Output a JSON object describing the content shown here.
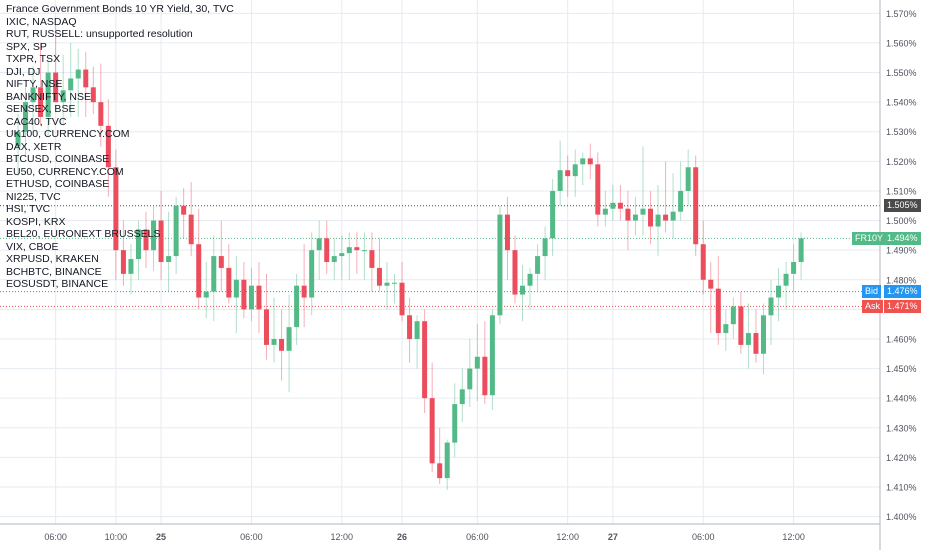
{
  "legend": [
    "France Government Bonds 10 YR Yield, 30, TVC",
    "IXIC, NASDAQ",
    "RUT, RUSSELL: unsupported resolution",
    "SPX, SP",
    "TXPR, TSX",
    "DJI, DJ",
    "NIFTY, NSE",
    "BANKNIFTY, NSE",
    "SENSEX, BSE",
    "CAC40, TVC",
    "UK100, CURRENCY.COM",
    "DAX, XETR",
    "BTCUSD, COINBASE",
    "EU50, CURRENCY.COM",
    "ETHUSD, COINBASE",
    "NI225, TVC",
    "HSI, TVC",
    "KOSPI, KRX",
    "BEL20, EURONEXT BRUSSELS",
    "VIX, CBOE",
    "XRPUSD, KRAKEN",
    "BCHBTC, BINANCE",
    "EOSUSDT, BINANCE"
  ],
  "price_badges": {
    "prev_close": "1.505%",
    "symbol": "FR10Y",
    "last": "1.494%",
    "bid_label": "Bid",
    "bid": "1.476%",
    "ask_label": "Ask",
    "ask": "1.471%"
  },
  "colors": {
    "up": "#53b987",
    "down": "#eb4d5c",
    "grid": "#e6ebf1",
    "bid": "#2196f3",
    "ask": "#ef5350",
    "prev_close": "#4a4a4a"
  },
  "chart_data": {
    "type": "candlestick",
    "title": "France Government Bonds 10 YR Yield, 30, TVC",
    "y_ticks": [
      "1.570%",
      "1.560%",
      "1.550%",
      "1.540%",
      "1.530%",
      "1.520%",
      "1.510%",
      "1.500%",
      "1.490%",
      "1.480%",
      "1.470%",
      "1.460%",
      "1.450%",
      "1.440%",
      "1.430%",
      "1.420%",
      "1.410%",
      "1.400%"
    ],
    "ylim": [
      1.3975,
      1.5745
    ],
    "x_ticks": [
      {
        "label": "06:00",
        "bar": 5
      },
      {
        "label": "10:00",
        "bar": 13
      },
      {
        "label": "25",
        "bar": 19
      },
      {
        "label": "06:00",
        "bar": 31
      },
      {
        "label": "12:00",
        "bar": 43
      },
      {
        "label": "26",
        "bar": 51
      },
      {
        "label": "06:00",
        "bar": 61
      },
      {
        "label": "12:00",
        "bar": 73
      },
      {
        "label": "27",
        "bar": 79
      },
      {
        "label": "06:00",
        "bar": 91
      },
      {
        "label": "12:00",
        "bar": 103
      }
    ],
    "reference_lines": {
      "prev_close": 1.505,
      "last": 1.494,
      "bid": 1.476,
      "ask": 1.471
    },
    "candles": [
      [
        1.525,
        1.536,
        1.515,
        1.53
      ],
      [
        1.53,
        1.545,
        1.522,
        1.54
      ],
      [
        1.54,
        1.552,
        1.53,
        1.545
      ],
      [
        1.545,
        1.56,
        1.532,
        1.535
      ],
      [
        1.535,
        1.555,
        1.528,
        1.55
      ],
      [
        1.55,
        1.566,
        1.54,
        1.54
      ],
      [
        1.54,
        1.556,
        1.532,
        1.544
      ],
      [
        1.544,
        1.56,
        1.535,
        1.548
      ],
      [
        1.548,
        1.558,
        1.535,
        1.551
      ],
      [
        1.551,
        1.557,
        1.535,
        1.545
      ],
      [
        1.545,
        1.552,
        1.536,
        1.54
      ],
      [
        1.54,
        1.553,
        1.525,
        1.532
      ],
      [
        1.532,
        1.541,
        1.508,
        1.518
      ],
      [
        1.518,
        1.524,
        1.48,
        1.49
      ],
      [
        1.49,
        1.5,
        1.478,
        1.482
      ],
      [
        1.482,
        1.492,
        1.475,
        1.487
      ],
      [
        1.487,
        1.5,
        1.48,
        1.497
      ],
      [
        1.497,
        1.503,
        1.484,
        1.49
      ],
      [
        1.49,
        1.505,
        1.483,
        1.5
      ],
      [
        1.5,
        1.51,
        1.48,
        1.486
      ],
      [
        1.486,
        1.503,
        1.476,
        1.488
      ],
      [
        1.488,
        1.508,
        1.482,
        1.505
      ],
      [
        1.505,
        1.511,
        1.494,
        1.502
      ],
      [
        1.502,
        1.513,
        1.488,
        1.492
      ],
      [
        1.492,
        1.504,
        1.47,
        1.474
      ],
      [
        1.474,
        1.486,
        1.467,
        1.476
      ],
      [
        1.476,
        1.495,
        1.466,
        1.488
      ],
      [
        1.488,
        1.5,
        1.476,
        1.484
      ],
      [
        1.484,
        1.492,
        1.472,
        1.474
      ],
      [
        1.474,
        1.488,
        1.462,
        1.48
      ],
      [
        1.48,
        1.486,
        1.467,
        1.47
      ],
      [
        1.47,
        1.484,
        1.466,
        1.478
      ],
      [
        1.478,
        1.486,
        1.462,
        1.47
      ],
      [
        1.47,
        1.482,
        1.453,
        1.458
      ],
      [
        1.458,
        1.474,
        1.452,
        1.46
      ],
      [
        1.46,
        1.47,
        1.446,
        1.456
      ],
      [
        1.456,
        1.475,
        1.442,
        1.464
      ],
      [
        1.464,
        1.482,
        1.458,
        1.478
      ],
      [
        1.478,
        1.492,
        1.464,
        1.474
      ],
      [
        1.474,
        1.496,
        1.468,
        1.49
      ],
      [
        1.49,
        1.5,
        1.48,
        1.494
      ],
      [
        1.494,
        1.5,
        1.482,
        1.486
      ],
      [
        1.486,
        1.494,
        1.48,
        1.488
      ],
      [
        1.488,
        1.495,
        1.48,
        1.489
      ],
      [
        1.489,
        1.496,
        1.48,
        1.491
      ],
      [
        1.491,
        1.496,
        1.482,
        1.49
      ],
      [
        1.49,
        1.496,
        1.48,
        1.49
      ],
      [
        1.49,
        1.496,
        1.476,
        1.484
      ],
      [
        1.484,
        1.494,
        1.476,
        1.478
      ],
      [
        1.478,
        1.486,
        1.47,
        1.479
      ],
      [
        1.479,
        1.482,
        1.472,
        1.479
      ],
      [
        1.479,
        1.486,
        1.466,
        1.468
      ],
      [
        1.468,
        1.474,
        1.452,
        1.46
      ],
      [
        1.46,
        1.468,
        1.45,
        1.466
      ],
      [
        1.466,
        1.47,
        1.435,
        1.44
      ],
      [
        1.44,
        1.452,
        1.415,
        1.418
      ],
      [
        1.418,
        1.43,
        1.411,
        1.413
      ],
      [
        1.413,
        1.426,
        1.409,
        1.425
      ],
      [
        1.425,
        1.445,
        1.42,
        1.438
      ],
      [
        1.438,
        1.45,
        1.432,
        1.443
      ],
      [
        1.443,
        1.46,
        1.437,
        1.45
      ],
      [
        1.45,
        1.465,
        1.439,
        1.454
      ],
      [
        1.454,
        1.466,
        1.438,
        1.441
      ],
      [
        1.441,
        1.47,
        1.436,
        1.468
      ],
      [
        1.468,
        1.505,
        1.465,
        1.502
      ],
      [
        1.502,
        1.508,
        1.48,
        1.49
      ],
      [
        1.49,
        1.495,
        1.472,
        1.475
      ],
      [
        1.475,
        1.485,
        1.466,
        1.478
      ],
      [
        1.478,
        1.484,
        1.47,
        1.482
      ],
      [
        1.482,
        1.492,
        1.476,
        1.488
      ],
      [
        1.488,
        1.498,
        1.48,
        1.494
      ],
      [
        1.494,
        1.514,
        1.488,
        1.51
      ],
      [
        1.51,
        1.527,
        1.505,
        1.517
      ],
      [
        1.517,
        1.522,
        1.508,
        1.515
      ],
      [
        1.515,
        1.524,
        1.508,
        1.519
      ],
      [
        1.519,
        1.523,
        1.512,
        1.521
      ],
      [
        1.521,
        1.526,
        1.514,
        1.519
      ],
      [
        1.519,
        1.523,
        1.498,
        1.502
      ],
      [
        1.502,
        1.51,
        1.498,
        1.504
      ],
      [
        1.504,
        1.512,
        1.5,
        1.506
      ],
      [
        1.506,
        1.512,
        1.5,
        1.504
      ],
      [
        1.504,
        1.51,
        1.49,
        1.5
      ],
      [
        1.5,
        1.508,
        1.495,
        1.502
      ],
      [
        1.502,
        1.525,
        1.495,
        1.504
      ],
      [
        1.504,
        1.51,
        1.492,
        1.498
      ],
      [
        1.498,
        1.512,
        1.488,
        1.502
      ],
      [
        1.502,
        1.52,
        1.496,
        1.5
      ],
      [
        1.5,
        1.516,
        1.494,
        1.503
      ],
      [
        1.503,
        1.52,
        1.5,
        1.51
      ],
      [
        1.51,
        1.524,
        1.505,
        1.518
      ],
      [
        1.518,
        1.522,
        1.488,
        1.492
      ],
      [
        1.492,
        1.5,
        1.475,
        1.48
      ],
      [
        1.48,
        1.486,
        1.462,
        1.477
      ],
      [
        1.477,
        1.488,
        1.458,
        1.462
      ],
      [
        1.462,
        1.47,
        1.456,
        1.465
      ],
      [
        1.465,
        1.474,
        1.46,
        1.471
      ],
      [
        1.471,
        1.476,
        1.455,
        1.458
      ],
      [
        1.458,
        1.472,
        1.45,
        1.462
      ],
      [
        1.462,
        1.47,
        1.452,
        1.455
      ],
      [
        1.455,
        1.472,
        1.448,
        1.468
      ],
      [
        1.468,
        1.48,
        1.458,
        1.474
      ],
      [
        1.474,
        1.484,
        1.466,
        1.478
      ],
      [
        1.478,
        1.486,
        1.47,
        1.482
      ],
      [
        1.482,
        1.492,
        1.476,
        1.486
      ],
      [
        1.486,
        1.496,
        1.48,
        1.494
      ]
    ]
  }
}
